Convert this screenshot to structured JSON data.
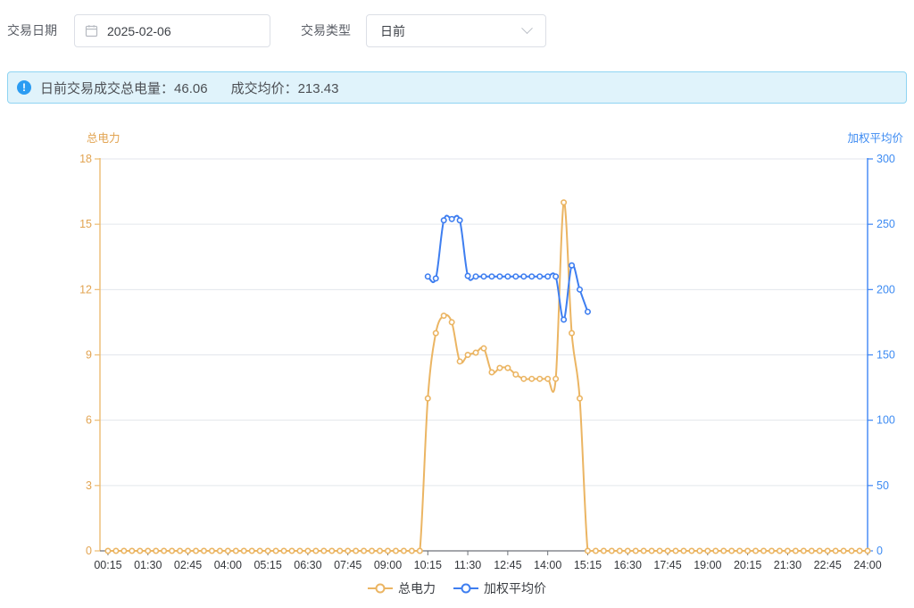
{
  "filters": {
    "date_label": "交易日期",
    "date_value": "2025-02-06",
    "type_label": "交易类型",
    "type_value": "日前"
  },
  "banner": {
    "volume_label": "日前交易成交总电量：",
    "volume_value": "46.06",
    "price_label": "成交均价：",
    "price_value": "213.43"
  },
  "chart_data": {
    "type": "line",
    "x_labels": [
      "00:15",
      "00:30",
      "00:45",
      "01:00",
      "01:15",
      "01:30",
      "01:45",
      "02:00",
      "02:15",
      "02:30",
      "02:45",
      "03:00",
      "03:15",
      "03:30",
      "03:45",
      "04:00",
      "04:15",
      "04:30",
      "04:45",
      "05:00",
      "05:15",
      "05:30",
      "05:45",
      "06:00",
      "06:15",
      "06:30",
      "06:45",
      "07:00",
      "07:15",
      "07:30",
      "07:45",
      "08:00",
      "08:15",
      "08:30",
      "08:45",
      "09:00",
      "09:15",
      "09:30",
      "09:45",
      "10:00",
      "10:15",
      "10:30",
      "10:45",
      "11:00",
      "11:15",
      "11:30",
      "11:45",
      "12:00",
      "12:15",
      "12:30",
      "12:45",
      "13:00",
      "13:15",
      "13:30",
      "13:45",
      "14:00",
      "14:15",
      "14:30",
      "14:45",
      "15:00",
      "15:15",
      "15:30",
      "15:45",
      "16:00",
      "16:15",
      "16:30",
      "16:45",
      "17:00",
      "17:15",
      "17:30",
      "17:45",
      "18:00",
      "18:15",
      "18:30",
      "18:45",
      "19:00",
      "19:15",
      "19:30",
      "19:45",
      "20:00",
      "20:15",
      "20:30",
      "20:45",
      "21:00",
      "21:15",
      "21:30",
      "21:45",
      "22:00",
      "22:15",
      "22:30",
      "22:45",
      "23:00",
      "23:15",
      "23:30",
      "23:45",
      "24:00"
    ],
    "x_tick_labels": [
      "00:15",
      "01:30",
      "02:45",
      "04:00",
      "05:15",
      "06:30",
      "07:45",
      "09:00",
      "10:15",
      "11:30",
      "12:45",
      "14:00",
      "15:15",
      "16:30",
      "17:45",
      "19:00",
      "20:15",
      "21:30",
      "22:45",
      "24:00"
    ],
    "x_label_every": 5,
    "left_axis": {
      "title": "总电力",
      "min": 0,
      "max": 18,
      "ticks": [
        0,
        3,
        6,
        9,
        12,
        15,
        18
      ],
      "text_color": "#e2a452",
      "line_color": "#edbc72"
    },
    "right_axis": {
      "title": "加权平均价",
      "min": 0,
      "max": 300,
      "ticks": [
        0,
        50,
        100,
        150,
        200,
        250,
        300
      ],
      "text_color": "#3d8bf2",
      "line_color": "#3e86f5"
    },
    "colors": {
      "grid": "#e3e6ec",
      "x_axis_line": "#6e7279",
      "x_label": "#33363b"
    },
    "legend_position": "bottom",
    "grid": true,
    "series": [
      {
        "name": "总电力",
        "axis": "left",
        "color": "#ebb563",
        "values": [
          0,
          0,
          0,
          0,
          0,
          0,
          0,
          0,
          0,
          0,
          0,
          0,
          0,
          0,
          0,
          0,
          0,
          0,
          0,
          0,
          0,
          0,
          0,
          0,
          0,
          0,
          0,
          0,
          0,
          0,
          0,
          0,
          0,
          0,
          0,
          0,
          0,
          0,
          0,
          0,
          7,
          10,
          10.8,
          10.5,
          8.7,
          9,
          9.1,
          9.3,
          8.2,
          8.4,
          8.4,
          8.1,
          7.9,
          7.9,
          7.9,
          7.9,
          7.9,
          16,
          10,
          7,
          0,
          0,
          0,
          0,
          0,
          0,
          0,
          0,
          0,
          0,
          0,
          0,
          0,
          0,
          0,
          0,
          0,
          0,
          0,
          0,
          0,
          0,
          0,
          0,
          0,
          0,
          0,
          0,
          0,
          0,
          0,
          0,
          0,
          0,
          0,
          0
        ]
      },
      {
        "name": "加权平均价",
        "axis": "right",
        "color": "#3e7ef0",
        "values": [
          null,
          null,
          null,
          null,
          null,
          null,
          null,
          null,
          null,
          null,
          null,
          null,
          null,
          null,
          null,
          null,
          null,
          null,
          null,
          null,
          null,
          null,
          null,
          null,
          null,
          null,
          null,
          null,
          null,
          null,
          null,
          null,
          null,
          null,
          null,
          null,
          null,
          null,
          null,
          null,
          210,
          208.5,
          253,
          254,
          253,
          210.5,
          210,
          210,
          210,
          210,
          210,
          210,
          210,
          210,
          210,
          210,
          210,
          177,
          218.5,
          200,
          183,
          null,
          null,
          null,
          null,
          null,
          null,
          null,
          null,
          null,
          null,
          null,
          null,
          null,
          null,
          null,
          null,
          null,
          null,
          null,
          null,
          null,
          null,
          null,
          null,
          null,
          null,
          null,
          null,
          null,
          null,
          null,
          null,
          null,
          null,
          null
        ]
      }
    ]
  }
}
